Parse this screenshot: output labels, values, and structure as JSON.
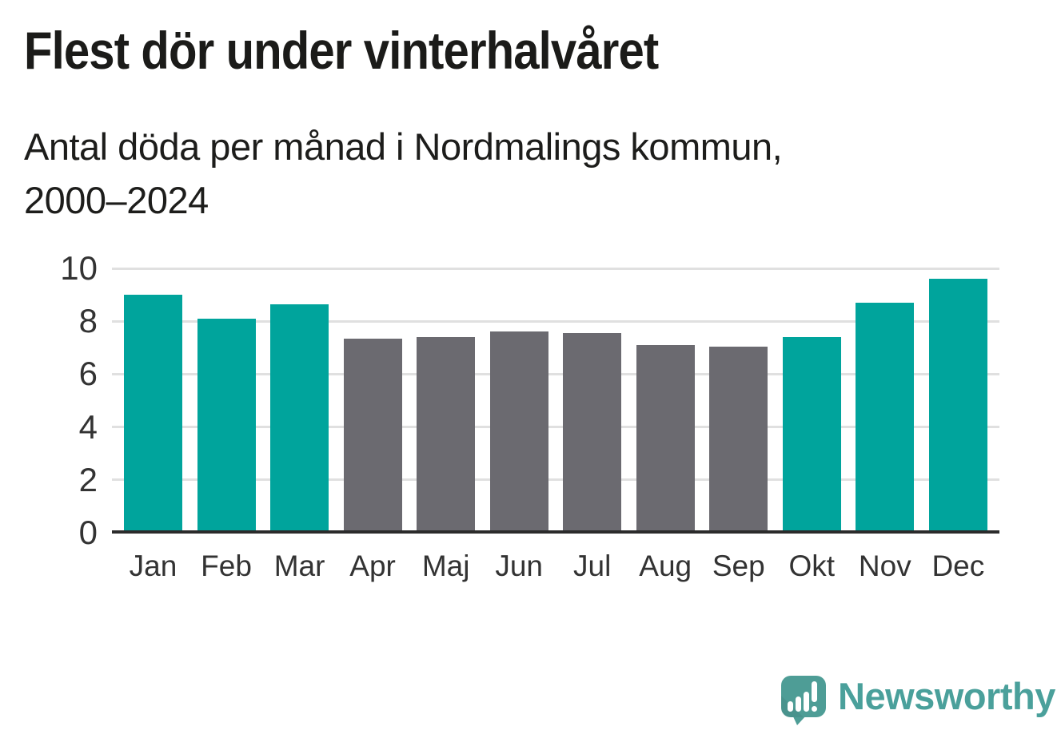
{
  "chart_data": {
    "type": "bar",
    "title": "Flest dör under vinterhalvåret",
    "subtitle_lines": [
      "Antal döda per månad i Nordmalings kommun,",
      "2000–2024"
    ],
    "categories": [
      "Jan",
      "Feb",
      "Mar",
      "Apr",
      "Maj",
      "Jun",
      "Jul",
      "Aug",
      "Sep",
      "Okt",
      "Nov",
      "Dec"
    ],
    "values": [
      9.0,
      8.1,
      8.65,
      7.35,
      7.4,
      7.6,
      7.55,
      7.1,
      7.05,
      7.4,
      8.7,
      9.6
    ],
    "groups": [
      "winter",
      "winter",
      "winter",
      "summer",
      "summer",
      "summer",
      "summer",
      "summer",
      "summer",
      "winter",
      "winter",
      "winter"
    ],
    "colors": {
      "winter": "#00A49C",
      "summer": "#6B6A70"
    },
    "xlabel": "",
    "ylabel": "",
    "ylim": [
      0,
      10
    ],
    "yticks": [
      0,
      2,
      4,
      6,
      8,
      10
    ],
    "grid": true,
    "legend": "none"
  },
  "footer": {
    "brand": "Newsworthy",
    "brand_color": "#4AA09B",
    "logo_icon": "bar-chart-speech-bubble-icon"
  },
  "theme": {
    "accent": "#00A49C",
    "neutral": "#6B6A70",
    "axis_line": "#2B2B2B",
    "gridline": "#E0E0E0",
    "text": "#1C1C1A"
  }
}
